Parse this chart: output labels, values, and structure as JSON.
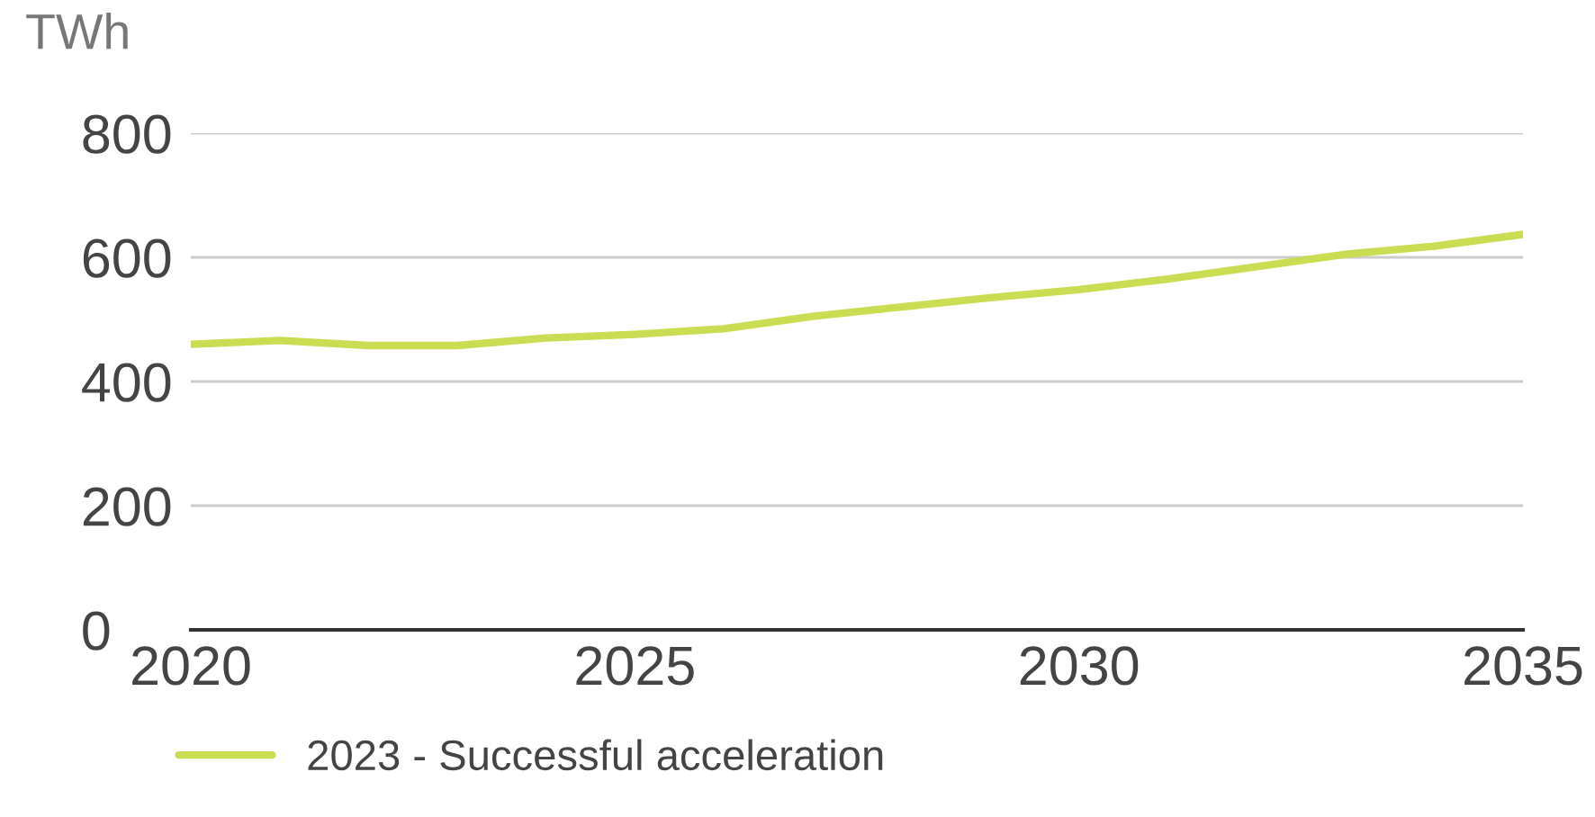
{
  "chart_data": {
    "type": "line",
    "ylabel": "TWh",
    "x": [
      2020,
      2021,
      2022,
      2023,
      2024,
      2025,
      2026,
      2027,
      2028,
      2029,
      2030,
      2031,
      2032,
      2033,
      2034,
      2035
    ],
    "series": [
      {
        "name": "2023 - Successful acceleration",
        "color": "#c9dc52",
        "values": [
          460,
          466,
          458,
          458,
          470,
          476,
          485,
          505,
          520,
          535,
          548,
          565,
          585,
          605,
          618,
          637
        ]
      }
    ],
    "xlim": [
      2020,
      2035
    ],
    "xticks": [
      2020,
      2025,
      2030,
      2035
    ],
    "ylim": [
      0,
      800
    ],
    "yticks": [
      0,
      200,
      400,
      600,
      800
    ],
    "grid": "y",
    "legend": "bottom left",
    "marker": "none",
    "line_style": "solid"
  }
}
